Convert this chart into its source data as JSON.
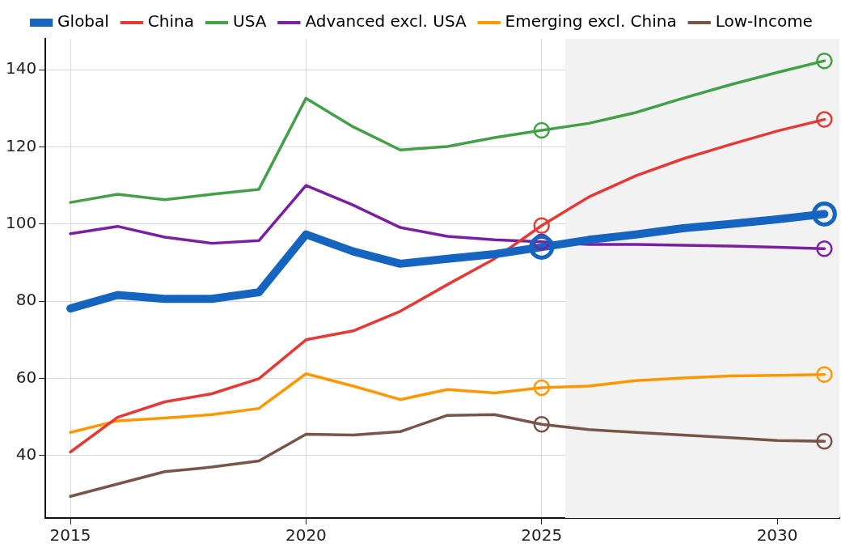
{
  "chart_data": {
    "type": "line",
    "x": [
      2015,
      2016,
      2017,
      2018,
      2019,
      2020,
      2021,
      2022,
      2023,
      2024,
      2025,
      2026,
      2027,
      2028,
      2029,
      2030,
      2031
    ],
    "series": [
      {
        "name": "Global",
        "color": "#1565c0",
        "values": [
          78.1,
          81.6,
          80.6,
          80.6,
          82.3,
          97.3,
          92.9,
          89.7,
          91.0,
          92.2,
          94.0,
          95.9,
          97.3,
          98.9,
          100.0,
          101.2,
          102.6
        ]
      },
      {
        "name": "China",
        "color": "#e53935",
        "values": [
          40.9,
          49.9,
          53.9,
          56.0,
          59.9,
          70.0,
          72.3,
          77.4,
          84.3,
          91.0,
          99.6,
          107.0,
          112.5,
          116.9,
          120.6,
          124.1,
          127.1
        ]
      },
      {
        "name": "USA",
        "color": "#43a047",
        "values": [
          105.6,
          107.7,
          106.3,
          107.7,
          109.0,
          132.6,
          125.2,
          119.2,
          120.1,
          122.4,
          124.3,
          126.1,
          128.9,
          132.6,
          136.1,
          139.3,
          142.3
        ]
      },
      {
        "name": "Advanced excl. USA",
        "color": "#7b1fa2",
        "values": [
          97.5,
          99.4,
          96.6,
          95.0,
          95.7,
          110.0,
          104.9,
          99.1,
          96.8,
          95.9,
          95.4,
          94.7,
          94.7,
          94.5,
          94.3,
          94.0,
          93.6
        ]
      },
      {
        "name": "Emerging excl. China",
        "color": "#ff9800",
        "values": [
          46.0,
          49.0,
          49.7,
          50.6,
          52.2,
          61.2,
          58.0,
          54.5,
          57.1,
          56.2,
          57.6,
          58.0,
          59.4,
          60.1,
          60.6,
          60.8,
          61.0
        ]
      },
      {
        "name": "Low-Income",
        "color": "#795548",
        "values": [
          29.4,
          32.6,
          35.8,
          37.0,
          38.6,
          45.5,
          45.3,
          46.2,
          50.4,
          50.6,
          48.1,
          46.7,
          46.0,
          45.3,
          44.6,
          43.9,
          43.7
        ]
      },
      {
        "type": "scatter",
        "marker": "circle",
        "color": "#1565c0",
        "values": [
          null,
          null,
          null,
          null,
          null,
          null,
          null,
          null,
          null,
          null,
          94.0,
          null,
          null,
          null,
          null,
          null,
          102.6
        ]
      },
      {
        "type": "scatter",
        "marker": "circle",
        "color": "#e53935",
        "values": [
          null,
          null,
          null,
          null,
          null,
          null,
          null,
          null,
          null,
          null,
          99.6,
          null,
          null,
          null,
          null,
          null,
          127.1
        ]
      },
      {
        "type": "scatter",
        "marker": "circle",
        "color": "#43a047",
        "values": [
          null,
          null,
          null,
          null,
          null,
          null,
          null,
          null,
          null,
          null,
          124.3,
          null,
          null,
          null,
          null,
          null,
          142.3
        ]
      },
      {
        "type": "scatter",
        "marker": "circle",
        "color": "#7b1fa2",
        "values": [
          null,
          null,
          null,
          null,
          null,
          null,
          null,
          null,
          null,
          null,
          95.4,
          null,
          null,
          null,
          null,
          null,
          93.6
        ]
      },
      {
        "type": "scatter",
        "marker": "circle",
        "color": "#ff9800",
        "values": [
          null,
          null,
          null,
          null,
          null,
          null,
          null,
          null,
          null,
          null,
          57.6,
          null,
          null,
          null,
          null,
          null,
          61.0
        ]
      },
      {
        "type": "scatter",
        "marker": "circle",
        "color": "#795548",
        "values": [
          null,
          null,
          null,
          null,
          null,
          null,
          null,
          null,
          null,
          null,
          48.1,
          null,
          null,
          null,
          null,
          null,
          43.7
        ]
      }
    ],
    "xlim": [
      2014.47,
      2031.32
    ],
    "xticks": [
      2015,
      2020,
      2025,
      2030
    ],
    "ylim": [
      23.8,
      148
    ],
    "yticks": [
      40,
      60,
      80,
      100,
      120,
      140
    ],
    "bands": [
      {
        "axis": "x",
        "from": 2025.5,
        "to": 2031.32,
        "color": "#f2f2f2"
      }
    ],
    "grid": true,
    "legend": "top",
    "marker": "none",
    "line_style": "solid"
  }
}
